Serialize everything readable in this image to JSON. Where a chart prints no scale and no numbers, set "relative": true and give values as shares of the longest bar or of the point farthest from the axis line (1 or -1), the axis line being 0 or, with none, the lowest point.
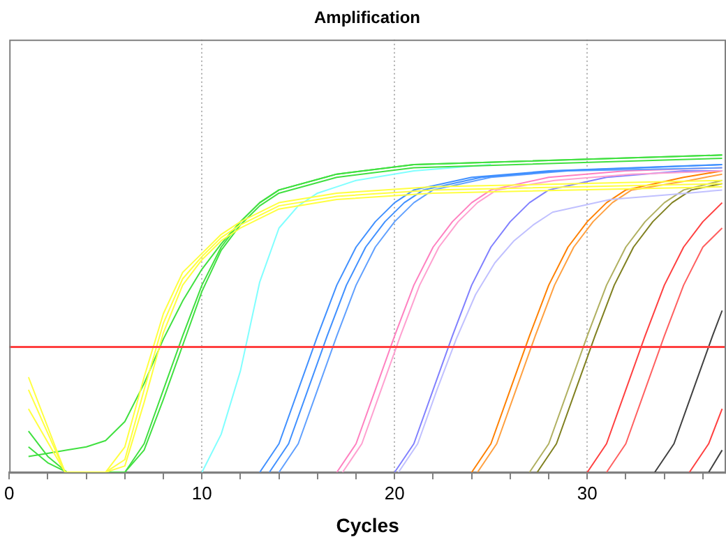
{
  "chart_data": {
    "type": "line",
    "title": "Amplification",
    "xlabel": "Cycles",
    "relative": true,
    "grid": "x",
    "legend": false,
    "tick_labels": "x",
    "marker": "none",
    "line_style": "solid",
    "xlim": [
      0,
      37.2
    ],
    "xticks": [
      0,
      {
        "value": 2,
        "label": null
      },
      {
        "value": 4,
        "label": null
      },
      {
        "value": 6,
        "label": null
      },
      {
        "value": 8,
        "label": null
      },
      10,
      {
        "value": 12,
        "label": null
      },
      {
        "value": 14,
        "label": null
      },
      {
        "value": 16,
        "label": null
      },
      {
        "value": 18,
        "label": null
      },
      20,
      {
        "value": 22,
        "label": null
      },
      {
        "value": 24,
        "label": null
      },
      {
        "value": 26,
        "label": null
      },
      {
        "value": 28,
        "label": null
      },
      30,
      {
        "value": 32,
        "label": null
      },
      {
        "value": 34,
        "label": null
      },
      {
        "value": 36,
        "label": null
      }
    ],
    "ref_lines": [
      {
        "axis": "y",
        "value": 0.395,
        "color": "#ff4040",
        "line_style": "solid"
      }
    ],
    "series": [
      {
        "color": "#ffff40",
        "x": [
          1,
          2.9,
          5,
          6,
          7,
          8,
          9,
          10,
          11,
          12,
          14,
          17,
          22,
          37
        ],
        "values": [
          0.3,
          0,
          0,
          0.08,
          0.3,
          0.5,
          0.63,
          0.69,
          0.75,
          0.79,
          0.85,
          0.88,
          0.9,
          0.92
        ]
      },
      {
        "color": "#ffff40",
        "x": [
          1,
          2.9,
          5,
          6,
          7,
          8,
          9,
          10,
          11,
          12,
          14,
          17,
          22,
          37
        ],
        "values": [
          0.26,
          0,
          0,
          0.04,
          0.26,
          0.47,
          0.61,
          0.68,
          0.74,
          0.78,
          0.84,
          0.87,
          0.89,
          0.91
        ]
      },
      {
        "color": "#ffff40",
        "x": [
          1,
          2.9,
          5,
          6,
          7,
          8,
          9,
          10,
          11,
          12,
          14,
          17,
          22,
          37
        ],
        "values": [
          0.2,
          0,
          0,
          0.02,
          0.22,
          0.44,
          0.59,
          0.67,
          0.73,
          0.77,
          0.83,
          0.86,
          0.88,
          0.9
        ]
      },
      {
        "color": "#40e040",
        "x": [
          1,
          2,
          3,
          4,
          5,
          6,
          7,
          8,
          9,
          10,
          11,
          12,
          13,
          14,
          17,
          21,
          37
        ],
        "values": [
          0.08,
          0.03,
          0,
          0,
          0,
          0,
          0.09,
          0.26,
          0.43,
          0.59,
          0.71,
          0.79,
          0.85,
          0.89,
          0.94,
          0.97,
          1.0
        ]
      },
      {
        "color": "#40e040",
        "x": [
          1,
          2,
          3,
          4,
          5,
          6,
          7,
          8,
          9,
          10,
          11,
          12,
          13,
          14,
          17,
          21,
          37
        ],
        "values": [
          0.13,
          0.05,
          0,
          0,
          0,
          0,
          0.07,
          0.23,
          0.4,
          0.57,
          0.7,
          0.78,
          0.84,
          0.88,
          0.93,
          0.96,
          0.99
        ]
      },
      {
        "color": "#40e040",
        "x": [
          1,
          2,
          3,
          4,
          5,
          6,
          7,
          8,
          9,
          10,
          11,
          12,
          13,
          14,
          17,
          21,
          37
        ],
        "values": [
          0.05,
          0.06,
          0.07,
          0.08,
          0.1,
          0.16,
          0.28,
          0.42,
          0.54,
          0.64,
          0.72,
          0.79,
          0.85,
          0.89,
          0.94,
          0.97,
          1.0
        ]
      },
      {
        "color": "#80ffff",
        "x": [
          10,
          11,
          12,
          13,
          14,
          15,
          16,
          17,
          18,
          21,
          25
        ],
        "values": [
          0,
          0.12,
          0.32,
          0.6,
          0.77,
          0.84,
          0.88,
          0.9,
          0.92,
          0.95,
          0.97
        ]
      },
      {
        "color": "#4090ff",
        "x": [
          13,
          14,
          15,
          16,
          17,
          18,
          19,
          20,
          21,
          24,
          28,
          37
        ],
        "values": [
          0,
          0.09,
          0.26,
          0.43,
          0.59,
          0.71,
          0.79,
          0.85,
          0.89,
          0.93,
          0.95,
          0.97
        ]
      },
      {
        "color": "#4090ff",
        "x": [
          13.5,
          14.5,
          15.5,
          16.5,
          17.5,
          18.5,
          19.5,
          20.5,
          21.5,
          24.5,
          28.5,
          37
        ],
        "values": [
          0,
          0.09,
          0.26,
          0.43,
          0.59,
          0.71,
          0.79,
          0.85,
          0.89,
          0.93,
          0.95,
          0.97
        ]
      },
      {
        "color": "#60a0ff",
        "x": [
          14,
          15,
          16,
          17,
          18,
          19,
          20,
          21,
          22,
          25,
          29,
          37
        ],
        "values": [
          0,
          0.09,
          0.26,
          0.43,
          0.59,
          0.71,
          0.79,
          0.85,
          0.89,
          0.93,
          0.95,
          0.96
        ]
      },
      {
        "color": "#ff80c0",
        "x": [
          17,
          18,
          19,
          20,
          21,
          22,
          23,
          24,
          25,
          28,
          32,
          37
        ],
        "values": [
          0,
          0.09,
          0.26,
          0.43,
          0.59,
          0.71,
          0.79,
          0.85,
          0.89,
          0.93,
          0.95,
          0.96
        ]
      },
      {
        "color": "#ffa0d0",
        "x": [
          17.3,
          18.3,
          19.3,
          20.3,
          21.3,
          22.3,
          23.3,
          24.3,
          25.3,
          28.3,
          32.3,
          37
        ],
        "values": [
          0,
          0.09,
          0.26,
          0.43,
          0.59,
          0.71,
          0.79,
          0.85,
          0.89,
          0.92,
          0.94,
          0.95
        ]
      },
      {
        "color": "#8080ff",
        "x": [
          20,
          21,
          22,
          23,
          24,
          25,
          26,
          27,
          28,
          31,
          35,
          37
        ],
        "values": [
          0,
          0.09,
          0.26,
          0.43,
          0.59,
          0.71,
          0.79,
          0.85,
          0.89,
          0.93,
          0.95,
          0.95
        ]
      },
      {
        "color": "#c0c0ff",
        "x": [
          20.2,
          21.2,
          22.2,
          23.2,
          24.2,
          25.2,
          26.2,
          27.2,
          28.2,
          31.2,
          35.2,
          37
        ],
        "values": [
          0,
          0.09,
          0.26,
          0.42,
          0.56,
          0.66,
          0.73,
          0.78,
          0.82,
          0.86,
          0.88,
          0.89
        ]
      },
      {
        "color": "#ff8000",
        "x": [
          24,
          25,
          26,
          27,
          28,
          29,
          30,
          31,
          32,
          35,
          37
        ],
        "values": [
          0,
          0.09,
          0.26,
          0.43,
          0.59,
          0.71,
          0.79,
          0.85,
          0.89,
          0.93,
          0.95
        ]
      },
      {
        "color": "#ffa040",
        "x": [
          24.3,
          25.3,
          26.3,
          27.3,
          28.3,
          29.3,
          30.3,
          31.3,
          32.3,
          35.3,
          37
        ],
        "values": [
          0,
          0.09,
          0.26,
          0.43,
          0.59,
          0.71,
          0.79,
          0.85,
          0.89,
          0.92,
          0.94
        ]
      },
      {
        "color": "#808020",
        "x": [
          27.4,
          28.4,
          29.4,
          30.4,
          31.4,
          32.4,
          33.4,
          34.4,
          35.4,
          37
        ],
        "values": [
          0,
          0.09,
          0.26,
          0.43,
          0.59,
          0.71,
          0.79,
          0.85,
          0.89,
          0.91
        ]
      },
      {
        "color": "#b0b060",
        "x": [
          27,
          28,
          29,
          30,
          31,
          32,
          33,
          34,
          35,
          37
        ],
        "values": [
          0,
          0.09,
          0.26,
          0.43,
          0.59,
          0.71,
          0.79,
          0.85,
          0.89,
          0.92
        ]
      },
      {
        "color": "#ff4040",
        "x": [
          30,
          31,
          32,
          33,
          34,
          35,
          36,
          37
        ],
        "values": [
          0,
          0.09,
          0.26,
          0.43,
          0.59,
          0.71,
          0.79,
          0.85
        ]
      },
      {
        "color": "#ff6060",
        "x": [
          31,
          32,
          33,
          34,
          35,
          36,
          37
        ],
        "values": [
          0,
          0.09,
          0.26,
          0.43,
          0.59,
          0.71,
          0.77
        ]
      },
      {
        "color": "#ff4040",
        "x": [
          35.3,
          36.3,
          37
        ],
        "values": [
          0,
          0.09,
          0.2
        ]
      },
      {
        "color": "#404040",
        "x": [
          33.5,
          34.5,
          35.5,
          36.5,
          37
        ],
        "values": [
          0,
          0.09,
          0.26,
          0.43,
          0.51
        ]
      },
      {
        "color": "#404040",
        "x": [
          36.3,
          37
        ],
        "values": [
          0,
          0.07
        ]
      }
    ]
  }
}
